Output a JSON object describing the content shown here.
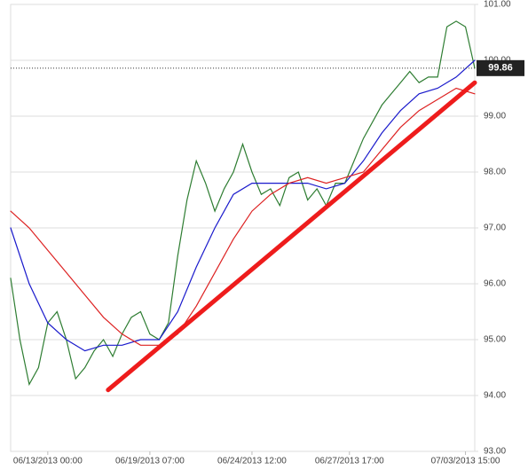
{
  "chart_data": {
    "type": "line",
    "xlim": [
      0,
      100
    ],
    "xticks": [
      {
        "value": 8,
        "label": "06/13/2013 00:00"
      },
      {
        "value": 30,
        "label": "06/19/2013 07:00"
      },
      {
        "value": 52,
        "label": "06/24/2013 12:00"
      },
      {
        "value": 73,
        "label": "06/27/2013 17:00"
      },
      {
        "value": 98,
        "label": "07/03/2013 15:00"
      }
    ],
    "ylim": [
      93,
      101
    ],
    "yticks": [
      {
        "value": 93,
        "label": "93.00"
      },
      {
        "value": 94,
        "label": "94.00"
      },
      {
        "value": 95,
        "label": "95.00"
      },
      {
        "value": 96,
        "label": "96.00"
      },
      {
        "value": 97,
        "label": "97.00"
      },
      {
        "value": 98,
        "label": "98.00"
      },
      {
        "value": 99,
        "label": "99.00"
      },
      {
        "value": 100,
        "label": "100.00"
      },
      {
        "value": 101,
        "label": "101.00"
      }
    ],
    "grid": true,
    "last_price": 99.86,
    "last_price_color": "#222222",
    "series": [
      {
        "color": "#2e7d32",
        "width": 1.2,
        "x": [
          0,
          2,
          4,
          6,
          8,
          10,
          12,
          14,
          16,
          18,
          20,
          22,
          24,
          26,
          28,
          30,
          32,
          34,
          36,
          38,
          40,
          42,
          44,
          46,
          48,
          50,
          52,
          54,
          56,
          58,
          60,
          62,
          64,
          66,
          68,
          70,
          72,
          74,
          76,
          78,
          80,
          82,
          84,
          86,
          88,
          90,
          92,
          94,
          96,
          98,
          100
        ],
        "values": [
          96.1,
          95.0,
          94.2,
          94.5,
          95.3,
          95.5,
          95.0,
          94.3,
          94.5,
          94.8,
          95.0,
          94.7,
          95.1,
          95.4,
          95.5,
          95.1,
          95.0,
          95.3,
          96.5,
          97.5,
          98.2,
          97.8,
          97.3,
          97.7,
          98.0,
          98.5,
          98.0,
          97.6,
          97.7,
          97.4,
          97.9,
          98.0,
          97.5,
          97.7,
          97.4,
          97.8,
          97.8,
          98.2,
          98.6,
          98.9,
          99.2,
          99.4,
          99.6,
          99.8,
          99.6,
          99.7,
          99.7,
          100.6,
          100.7,
          100.6,
          99.86
        ]
      },
      {
        "color": "#1a1acc",
        "width": 1.2,
        "x": [
          0,
          4,
          8,
          12,
          16,
          20,
          24,
          28,
          32,
          36,
          40,
          44,
          48,
          52,
          56,
          60,
          64,
          68,
          72,
          76,
          80,
          84,
          88,
          92,
          96,
          100
        ],
        "values": [
          97.0,
          96.0,
          95.3,
          95.0,
          94.8,
          94.9,
          94.9,
          95.0,
          95.0,
          95.5,
          96.3,
          97.0,
          97.6,
          97.8,
          97.8,
          97.8,
          97.8,
          97.7,
          97.8,
          98.2,
          98.7,
          99.1,
          99.4,
          99.5,
          99.7,
          100.0
        ]
      },
      {
        "color": "#dd2222",
        "width": 1.2,
        "x": [
          0,
          4,
          8,
          12,
          16,
          20,
          24,
          28,
          32,
          36,
          40,
          44,
          48,
          52,
          56,
          60,
          64,
          68,
          72,
          76,
          80,
          84,
          88,
          92,
          96,
          100
        ],
        "values": [
          97.3,
          97.0,
          96.6,
          96.2,
          95.8,
          95.4,
          95.1,
          94.9,
          94.9,
          95.1,
          95.6,
          96.2,
          96.8,
          97.3,
          97.6,
          97.8,
          97.9,
          97.8,
          97.9,
          98.0,
          98.4,
          98.8,
          99.1,
          99.3,
          99.5,
          99.4
        ]
      },
      {
        "color": "#ee1c1c",
        "width": 5,
        "x": [
          21,
          100
        ],
        "values": [
          94.1,
          99.6
        ]
      }
    ]
  }
}
